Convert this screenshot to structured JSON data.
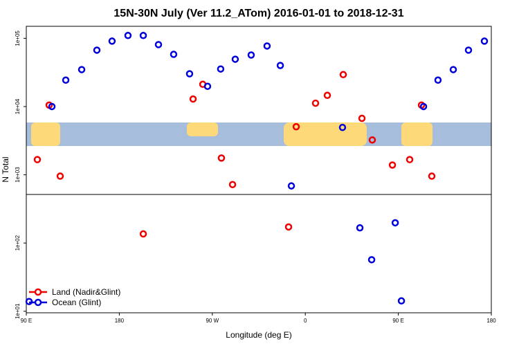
{
  "chart_data": {
    "type": "scatter",
    "title": "15N-30N July (Ver 11.2_ATom)   2016-01-01 to 2018-12-31",
    "xlabel": "Longitude (deg E)",
    "ylabel": "N Total",
    "log_y": true,
    "legend": "bottom-left",
    "xlim": [
      90,
      540
    ],
    "xticks": [
      {
        "value": 90,
        "label": "90 E"
      },
      180,
      {
        "value": 270,
        "label": "90 W"
      },
      {
        "value": 360,
        "label": "0"
      },
      {
        "value": 450,
        "label": "90 E"
      },
      {
        "value": 540,
        "label": "180"
      }
    ],
    "ylim": [
      9.5,
      150000
    ],
    "yticks": [
      {
        "value": 10,
        "label": "1e+01"
      },
      {
        "value": 100,
        "label": "1e+02"
      },
      {
        "value": 1000,
        "label": "1e+03"
      },
      {
        "value": 10000,
        "label": "1e+04"
      },
      {
        "value": 100000,
        "label": "1e+05"
      }
    ],
    "series": [
      {
        "name": "Land (Nadir&Glint)",
        "color": "#ee0000",
        "x": [
          100.7,
          112.1,
          122.8,
          203.2,
          251.4,
          260.8,
          278.8,
          289.6,
          343.8,
          351.2,
          369.9,
          381.3,
          396.7,
          414.8,
          424.8,
          444.3,
          461,
          472.4,
          482.4
        ],
        "values": [
          1670,
          10500,
          955,
          136,
          12900,
          21200,
          1760,
          719,
          172,
          5060,
          11200,
          14600,
          29400,
          6710,
          3240,
          1390,
          1670,
          10500,
          955
        ]
      },
      {
        "name": "Ocean (Glint)",
        "color": "#0000dd",
        "x": [
          92.7,
          114.8,
          128.2,
          143.6,
          158.3,
          173,
          188.4,
          203.2,
          217.9,
          232.6,
          248,
          265.4,
          278.1,
          292.2,
          307.6,
          323,
          335.8,
          346.5,
          396,
          412.8,
          424.2,
          447,
          453,
          474.4,
          488.4,
          503.2,
          517.9,
          533.3
        ],
        "values": [
          13.9,
          10000,
          24400,
          34800,
          67100,
          91000,
          110000,
          110000,
          80900,
          58200,
          30200,
          19800,
          35500,
          49400,
          56900,
          77200,
          40000,
          687,
          4940,
          167,
          56.9,
          198,
          14.2,
          10000,
          24400,
          34800,
          67100,
          91000
        ]
      }
    ]
  }
}
